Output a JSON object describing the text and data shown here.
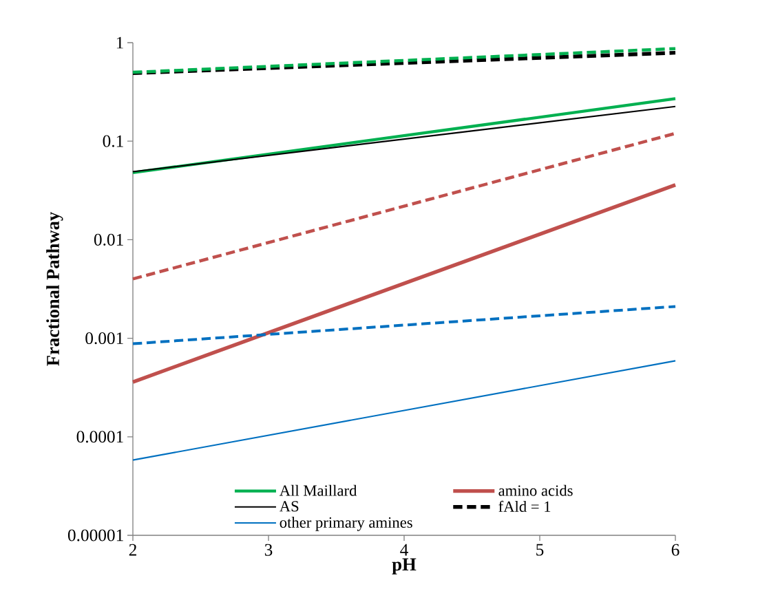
{
  "chart_data": {
    "type": "line",
    "xlabel": "pH",
    "ylabel": "Fractional Pathway",
    "x": [
      2,
      6
    ],
    "log": "y",
    "xlim": [
      2,
      6
    ],
    "xticks": [
      2,
      3,
      4,
      5,
      6
    ],
    "ylim": [
      1e-05,
      1
    ],
    "yticks": [
      {
        "value": 1e-05,
        "label": "0.00001"
      },
      0.0001,
      0.001,
      0.01,
      0.1,
      1
    ],
    "legend": "bottom",
    "series": [
      {
        "name": "All Maillard",
        "color": "#00b050",
        "line_style": "solid",
        "values": [
          0.048,
          0.27
        ]
      },
      {
        "name": "amino acids",
        "color": "#c0504d",
        "line_style": "solid",
        "values": [
          0.00036,
          0.036
        ]
      },
      {
        "name": "AS",
        "color": "#000000",
        "line_style": "solid",
        "values": [
          0.049,
          0.225
        ]
      },
      {
        "name": "fAld = 1",
        "color": "#000000",
        "line_style": "dashed",
        "values": [
          0.49,
          0.79
        ]
      },
      {
        "name": "other primary amines",
        "color": "#0070c0",
        "line_style": "solid",
        "values": [
          5.8e-05,
          0.00059
        ]
      },
      {
        "color": "#00b050",
        "line_style": "dashed",
        "values": [
          0.5,
          0.87
        ]
      },
      {
        "color": "#c0504d",
        "line_style": "dashed",
        "values": [
          0.004,
          0.12
        ]
      },
      {
        "color": "#0070c0",
        "line_style": "dashed",
        "values": [
          0.00088,
          0.0021
        ]
      }
    ]
  }
}
